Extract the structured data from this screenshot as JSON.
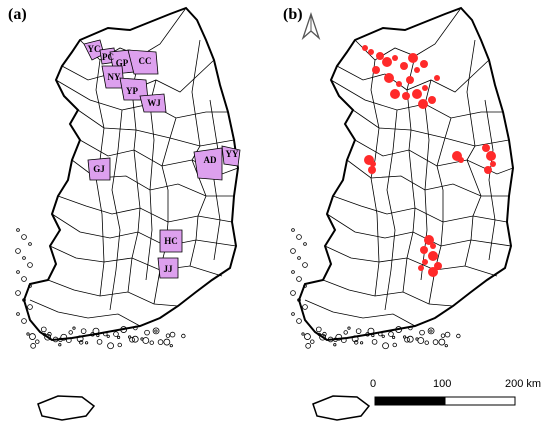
{
  "panel_a": {
    "label": "(a)",
    "regions": [
      {
        "code": "YC"
      },
      {
        "code": "PC"
      },
      {
        "code": "GP"
      },
      {
        "code": "CC"
      },
      {
        "code": "NY"
      },
      {
        "code": "YP"
      },
      {
        "code": "WJ"
      },
      {
        "code": "AD"
      },
      {
        "code": "YY"
      },
      {
        "code": "GJ"
      },
      {
        "code": "HC"
      },
      {
        "code": "JJ"
      }
    ],
    "highlight_color": "#dda0ee"
  },
  "panel_b": {
    "label": "(b)",
    "highlight_color": "#ff2a2a",
    "north_arrow_icon": "north-arrow-icon",
    "scale_bar": {
      "ticks": [
        "0",
        "100",
        "200 km"
      ]
    }
  },
  "colors": {
    "boundary": "#000000",
    "land": "#ffffff"
  }
}
